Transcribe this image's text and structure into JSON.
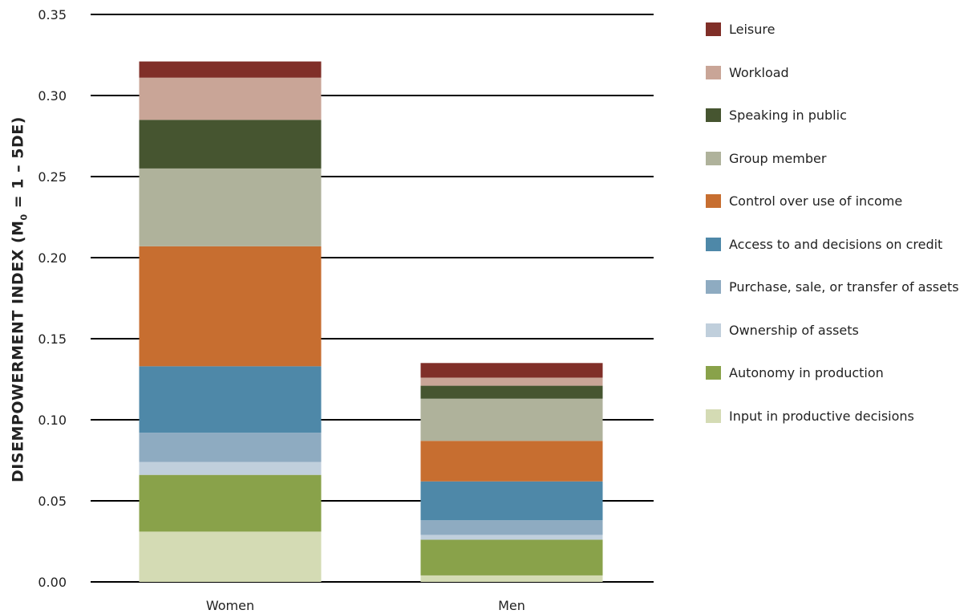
{
  "chart_data": {
    "type": "bar",
    "stacked": true,
    "categories": [
      "Women",
      "Men"
    ],
    "ylabel_main": "DISEMPOWERMENT INDEX (M",
    "ylabel_sub": "0",
    "ylabel_tail": " = 1 – 5DE)",
    "ylim": [
      0,
      0.35
    ],
    "yticks": [
      "0.00",
      "0.05",
      "0.10",
      "0.15",
      "0.20",
      "0.25",
      "0.30",
      "0.35"
    ],
    "ytick_values": [
      0,
      0.05,
      0.1,
      0.15,
      0.2,
      0.25,
      0.3,
      0.35
    ],
    "grid": true,
    "legend_position": "right",
    "series": [
      {
        "name": "Input in productive decisions",
        "color": "#d4dbb4",
        "values": [
          0.031,
          0.004
        ]
      },
      {
        "name": "Autonomy in production",
        "color": "#89a24a",
        "values": [
          0.035,
          0.022
        ]
      },
      {
        "name": "Ownership of assets",
        "color": "#c0cfdc",
        "values": [
          0.008,
          0.003
        ]
      },
      {
        "name": "Purchase, sale, or transfer of assets",
        "color": "#8eabc1",
        "values": [
          0.018,
          0.009
        ]
      },
      {
        "name": "Access to and decisions on credit",
        "color": "#4e88a8",
        "values": [
          0.041,
          0.024
        ]
      },
      {
        "name": "Control over use of income",
        "color": "#c76e30",
        "values": [
          0.074,
          0.025
        ]
      },
      {
        "name": "Group member",
        "color": "#afb29b",
        "values": [
          0.048,
          0.026
        ]
      },
      {
        "name": "Speaking in public",
        "color": "#465530",
        "values": [
          0.03,
          0.008
        ]
      },
      {
        "name": "Workload",
        "color": "#c9a597",
        "values": [
          0.026,
          0.005
        ]
      },
      {
        "name": "Leisure",
        "color": "#802f28",
        "values": [
          0.01,
          0.009
        ]
      }
    ]
  }
}
